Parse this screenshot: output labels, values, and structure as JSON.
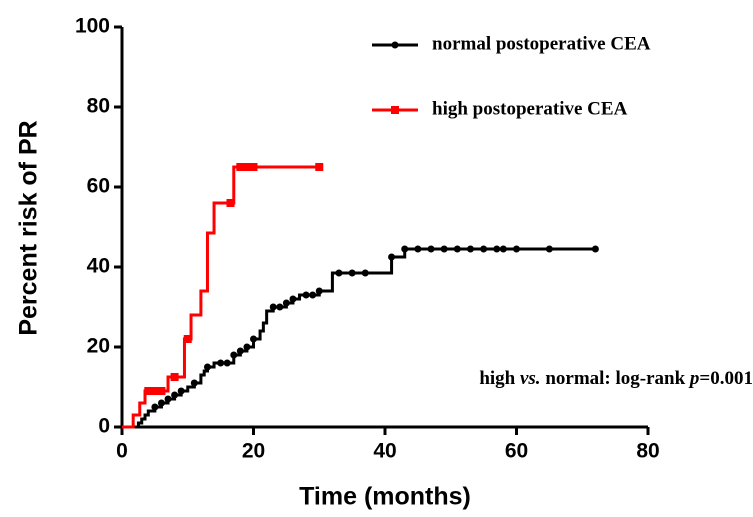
{
  "chart_data": {
    "type": "step",
    "x_label": "Time (months)",
    "y_label": "Percent risk of PR",
    "xlim": [
      0,
      80
    ],
    "xticks": [
      0,
      20,
      40,
      60,
      80
    ],
    "ylim": [
      0,
      100
    ],
    "yticks": [
      0,
      20,
      40,
      60,
      80,
      100
    ],
    "legend": "top-right",
    "annotation": [
      "high ",
      "vs.",
      " normal: log-rank ",
      "p",
      "=0.001"
    ],
    "series": [
      {
        "name": "normal postoperative CEA",
        "color": "#000000",
        "marker": "circle",
        "x": [
          0,
          2,
          2.5,
          3,
          3.5,
          4,
          5,
          6,
          7,
          8,
          9,
          10,
          11,
          12,
          12.5,
          13,
          14,
          17,
          18,
          19,
          20,
          21,
          21.5,
          22,
          23,
          25,
          26,
          27,
          30,
          32,
          40,
          41,
          43,
          72
        ],
        "values": [
          0,
          0,
          1,
          2,
          3,
          4,
          5,
          6,
          7,
          8,
          9,
          10,
          11,
          13,
          14,
          15,
          16,
          18,
          19,
          20,
          22,
          24,
          26,
          29,
          30,
          31,
          32,
          33,
          34,
          38.5,
          38.5,
          42.5,
          44.5,
          44.5
        ],
        "censor_x": [
          5,
          6,
          7,
          8,
          9,
          11,
          13,
          15,
          16,
          17,
          18,
          19,
          20,
          23,
          24,
          25,
          26,
          28,
          29,
          30,
          33,
          35,
          37,
          41,
          43,
          45,
          47,
          49,
          51,
          53,
          55,
          57,
          58,
          60,
          65,
          72
        ],
        "censor_y": [
          5,
          6,
          7,
          8,
          9,
          11,
          15,
          16,
          16,
          18,
          19,
          20,
          22,
          30,
          30,
          31,
          32,
          33,
          33,
          34,
          38.5,
          38.5,
          38.5,
          42.5,
          44.5,
          44.5,
          44.5,
          44.5,
          44.5,
          44.5,
          44.5,
          44.5,
          44.5,
          44.5,
          44.5,
          44.5
        ]
      },
      {
        "name": "high postoperative CEA",
        "color": "#ff0000",
        "marker": "square",
        "x": [
          0,
          1.7,
          2.7,
          3.5,
          7,
          9.5,
          10.5,
          12,
          13,
          14,
          17,
          30
        ],
        "values": [
          0,
          3,
          6,
          9,
          12.5,
          22,
          28,
          34,
          48.5,
          56,
          65,
          65
        ],
        "censor_x": [
          4,
          5,
          6,
          8,
          10,
          16.5,
          18,
          19,
          20,
          30
        ],
        "censor_y": [
          9,
          9,
          9,
          12.5,
          22,
          56,
          65,
          65,
          65,
          65
        ]
      }
    ]
  }
}
